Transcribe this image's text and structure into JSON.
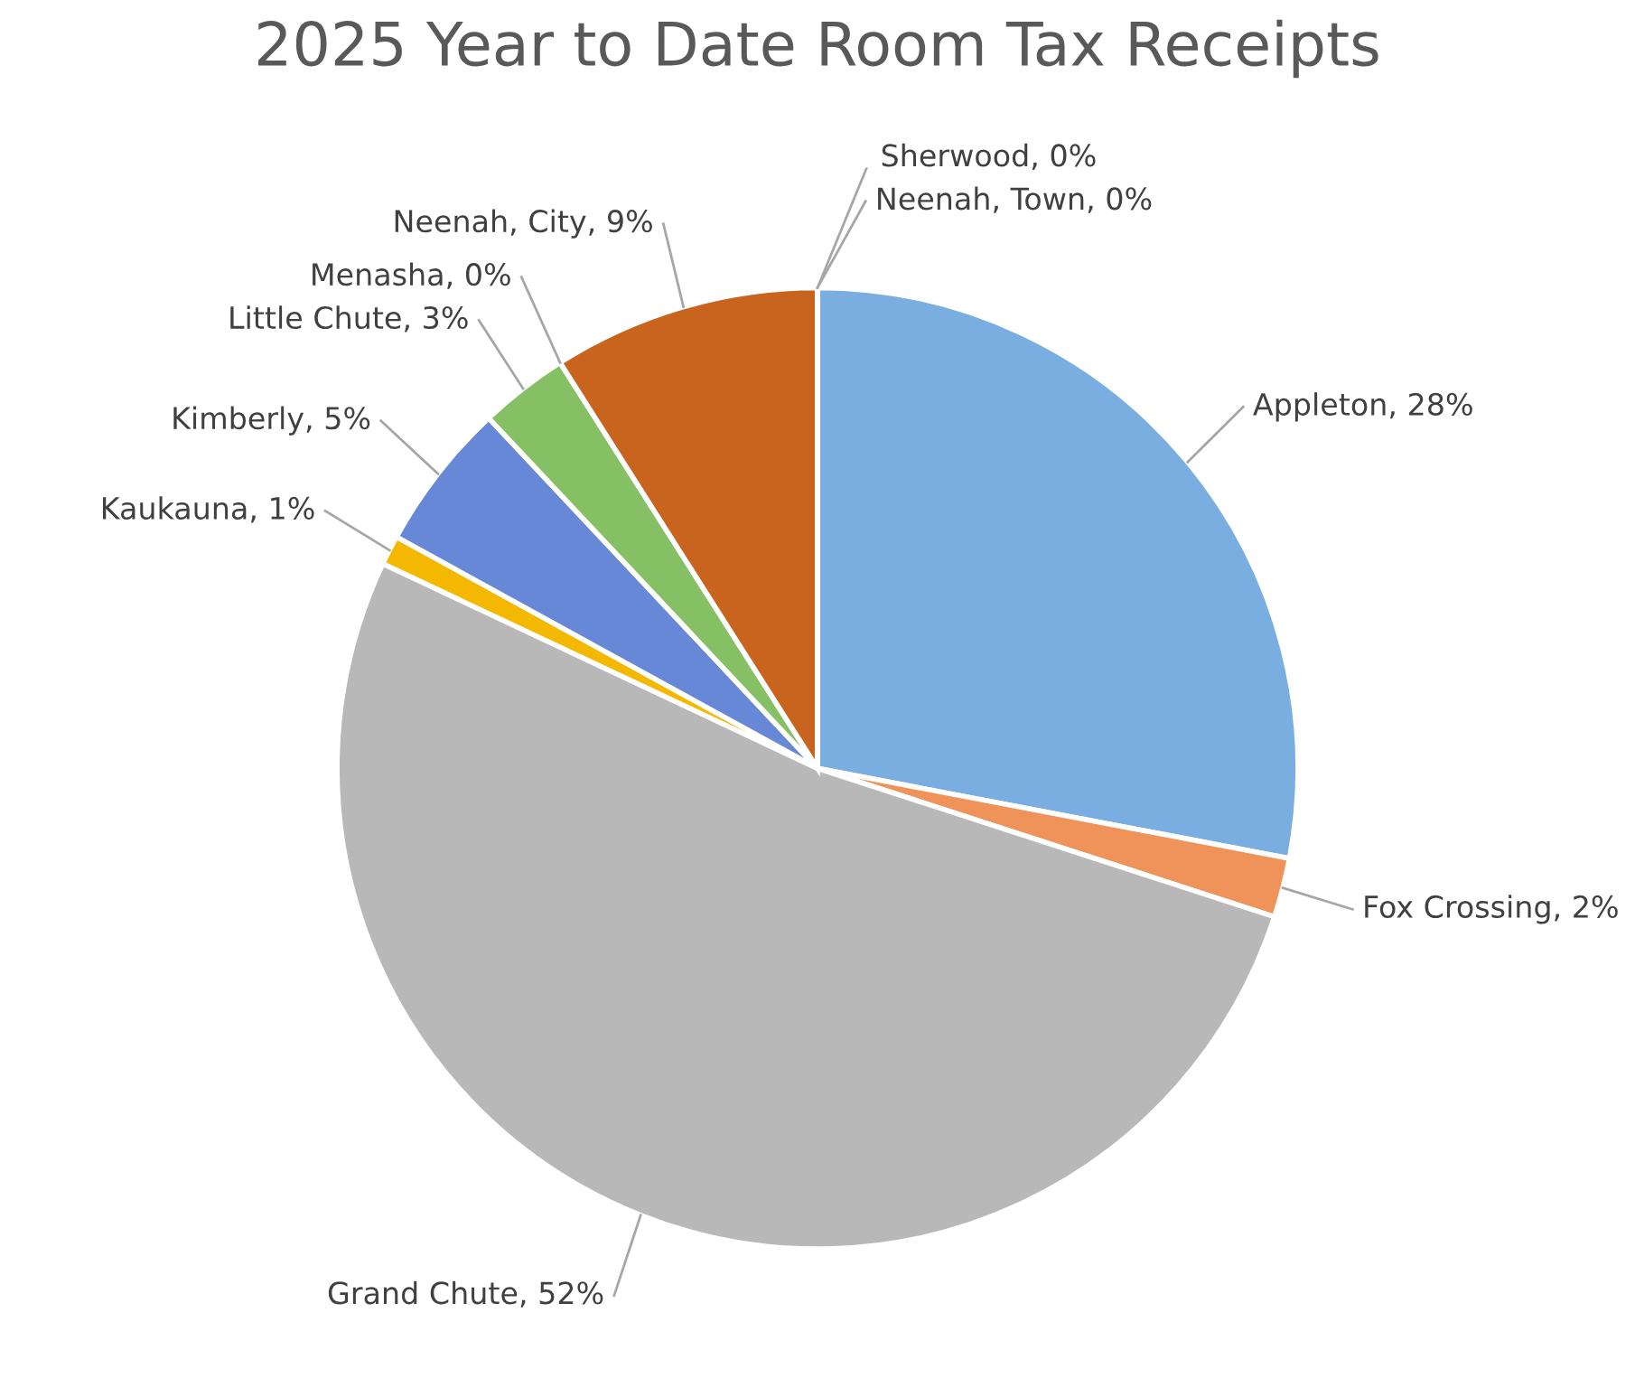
{
  "chart_data": {
    "type": "pie",
    "title": "2025 Year to Date Room Tax Receipts",
    "categories": [
      "Appleton",
      "Fox Crossing",
      "Grand Chute",
      "Kaukauna",
      "Kimberly",
      "Little Chute",
      "Menasha",
      "Neenah, City",
      "Neenah, Town",
      "Sherwood"
    ],
    "values": [
      28,
      2,
      52,
      1,
      5,
      3,
      0,
      9,
      0,
      0
    ],
    "value_labels": [
      ", 28%",
      ", 2%",
      ", 52%",
      ", 1%",
      ", 5%",
      ", 3%",
      ", 0%",
      ", 9%",
      ", 0%",
      ", 0%"
    ],
    "colors": [
      "#7aaee0",
      "#f0935a",
      "#b8b8b8",
      "#f5b800",
      "#6688d6",
      "#86c064",
      "#a5a5a5",
      "#c8641e",
      "#7f7f7f",
      "#2f5f8f"
    ]
  }
}
